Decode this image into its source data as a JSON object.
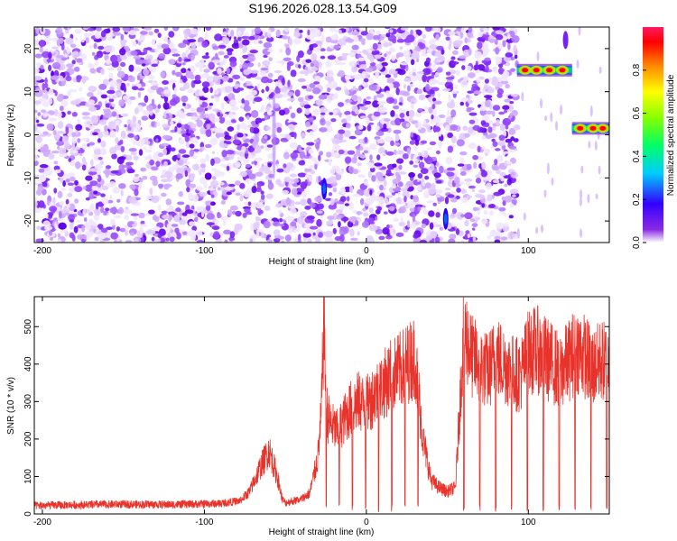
{
  "title": "S196.2026.028.13.54.G09",
  "chart_data": [
    {
      "type": "heatmap",
      "xlabel": "Height of straight line (km)",
      "ylabel": "Frequency (Hz)",
      "xlim": [
        -205,
        150
      ],
      "ylim": [
        -25,
        25
      ],
      "x_ticks": [
        -200,
        -100,
        0,
        100
      ],
      "y_ticks": [
        -20,
        -10,
        0,
        10,
        20
      ],
      "colorbar": {
        "label": "Normalized spectral amplitude",
        "range": [
          0,
          1
        ],
        "ticks": [
          "0.0",
          "0.2",
          "0.4",
          "0.6",
          "0.8"
        ]
      },
      "noise_region": {
        "x_range": [
          -205,
          93
        ],
        "y_range": [
          -25,
          25
        ]
      },
      "vertical_gaps": [
        -57,
        -25,
        48
      ],
      "lines": [
        {
          "x_range": [
            93,
            127
          ],
          "frequency": 15,
          "peaks": [
            98,
            105,
            113,
            121
          ]
        },
        {
          "x_range": [
            127,
            150
          ],
          "frequency": 1.5,
          "peaks": [
            132,
            140,
            146
          ]
        }
      ],
      "spots": [
        {
          "x": -26,
          "y": -12.5
        },
        {
          "x": 49,
          "y": -19.5
        },
        {
          "x": 123,
          "y": 22
        },
        {
          "x": -57,
          "y": 0
        }
      ]
    },
    {
      "type": "line",
      "xlabel": "Height of straight line (km)",
      "ylabel": "SNR (10 * v/v)",
      "xlim": [
        -205,
        150
      ],
      "ylim": [
        0,
        580
      ],
      "x_ticks": [
        -200,
        -100,
        0,
        100
      ],
      "y_ticks": [
        0,
        100,
        200,
        300,
        400,
        500
      ],
      "color": "#e8322a",
      "series": [
        {
          "x": [
            -205,
            -180,
            -150,
            -120,
            -90,
            -78,
            -72,
            -66,
            -60,
            -55,
            -52,
            -50,
            -45,
            -40,
            -35,
            -30,
            -28,
            -26,
            -25,
            -24,
            -22,
            -18,
            -14,
            -10,
            -5,
            0,
            5,
            10,
            15,
            20,
            25,
            30,
            35,
            40,
            45,
            50,
            55,
            60,
            62,
            65,
            70,
            75,
            80,
            85,
            90,
            95,
            100,
            105,
            110,
            115,
            120,
            125,
            130,
            135,
            140,
            145,
            150
          ],
          "values": [
            22,
            24,
            26,
            25,
            28,
            35,
            60,
            120,
            170,
            100,
            40,
            30,
            35,
            40,
            55,
            150,
            250,
            540,
            320,
            260,
            240,
            220,
            250,
            280,
            300,
            290,
            320,
            340,
            370,
            380,
            400,
            420,
            200,
            90,
            70,
            60,
            70,
            480,
            470,
            420,
            400,
            380,
            420,
            400,
            380,
            370,
            430,
            440,
            420,
            400,
            380,
            410,
            440,
            420,
            390,
            410,
            400
          ]
        }
      ]
    }
  ]
}
